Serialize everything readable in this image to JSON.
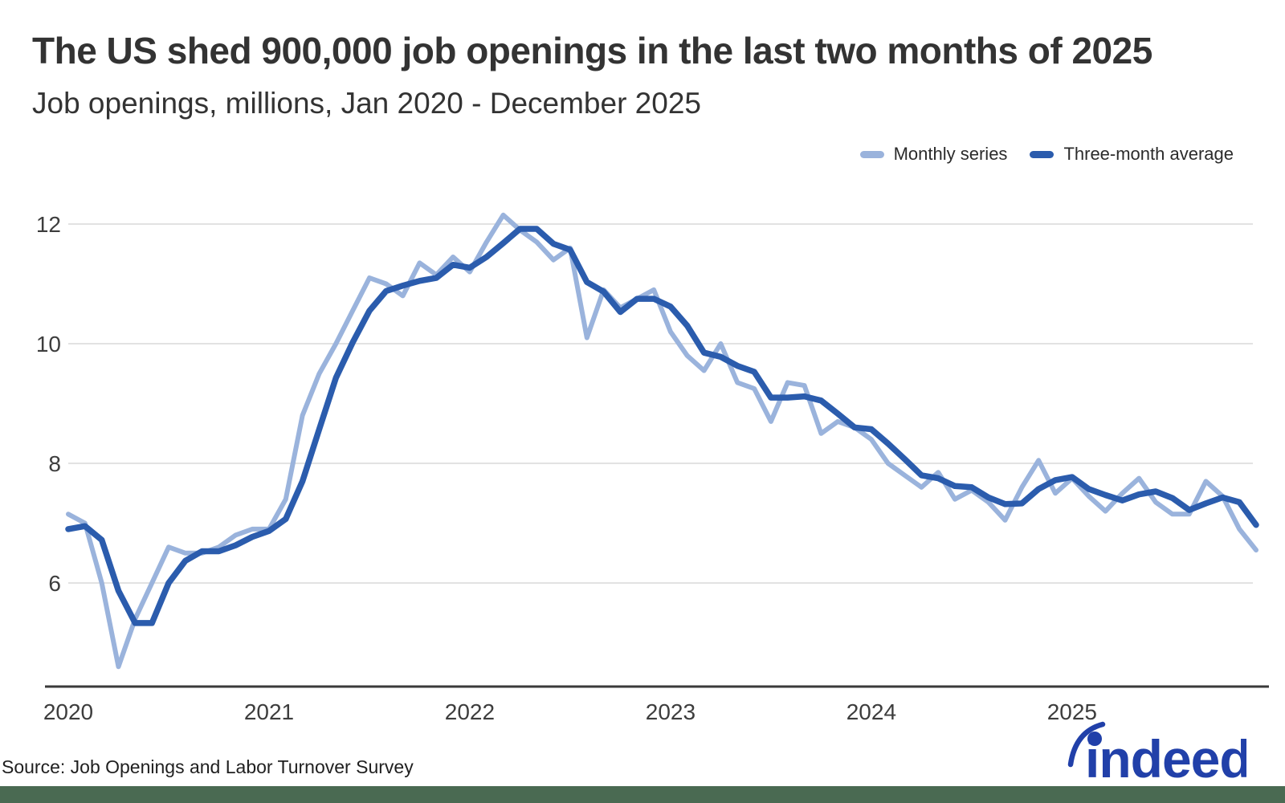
{
  "header": {
    "title": "The US shed 900,000 job openings in the last two months of 2025",
    "subtitle": "Job openings, millions, Jan 2020 - December 2025"
  },
  "chart_data": {
    "type": "line",
    "title": "The US shed 900,000 job openings in the last two months of 2025",
    "subtitle": "Job openings, millions, Jan 2020 - December 2025",
    "x": {
      "tick_labels": [
        "2020",
        "2021",
        "2022",
        "2023",
        "2024",
        "2025"
      ],
      "unit": "month",
      "range_label": "Jan 2020 - December 2025"
    },
    "y": {
      "ticks": [
        6,
        8,
        10,
        12
      ],
      "range": [
        4.25,
        12.7
      ],
      "label": "Job openings, millions"
    },
    "grid": true,
    "legend_position": "top-right",
    "series": [
      {
        "name": "Monthly series",
        "color": "#9ab3dc",
        "values": [
          7.15,
          7.0,
          6.0,
          4.6,
          5.4,
          6.0,
          6.6,
          6.5,
          6.5,
          6.6,
          6.8,
          6.9,
          6.9,
          7.4,
          8.8,
          9.5,
          10.0,
          10.55,
          11.1,
          11.0,
          10.8,
          11.35,
          11.15,
          11.45,
          11.2,
          11.7,
          12.15,
          11.9,
          11.7,
          11.4,
          11.6,
          10.1,
          10.9,
          10.6,
          10.75,
          10.9,
          10.2,
          9.8,
          9.55,
          10.0,
          9.35,
          9.25,
          8.7,
          9.35,
          9.3,
          8.5,
          8.7,
          8.6,
          8.4,
          8.0,
          7.8,
          7.6,
          7.85,
          7.4,
          7.55,
          7.35,
          7.05,
          7.6,
          8.05,
          7.5,
          7.75,
          7.45,
          7.2,
          7.5,
          7.75,
          7.35,
          7.15,
          7.15,
          7.7,
          7.45,
          6.9,
          6.55
        ]
      },
      {
        "name": "Three-month average",
        "color": "#2b5cad",
        "values": [
          6.9,
          6.95,
          6.72,
          5.87,
          5.33,
          5.33,
          6.0,
          6.37,
          6.53,
          6.53,
          6.63,
          6.77,
          6.87,
          7.07,
          7.7,
          8.57,
          9.43,
          10.02,
          10.55,
          10.88,
          10.97,
          11.05,
          11.1,
          11.32,
          11.27,
          11.45,
          11.68,
          11.92,
          11.92,
          11.67,
          11.57,
          11.03,
          10.87,
          10.53,
          10.75,
          10.75,
          10.62,
          10.3,
          9.85,
          9.78,
          9.63,
          9.53,
          9.1,
          9.1,
          9.12,
          9.05,
          8.83,
          8.6,
          8.57,
          8.33,
          8.07,
          7.8,
          7.75,
          7.62,
          7.6,
          7.43,
          7.32,
          7.33,
          7.57,
          7.72,
          7.77,
          7.57,
          7.47,
          7.38,
          7.48,
          7.53,
          7.42,
          7.22,
          7.33,
          7.43,
          7.35,
          6.97
        ]
      }
    ]
  },
  "footer": {
    "source": "Source: Job Openings and Labor Turnover Survey",
    "brand": "indeed",
    "brand_color": "#2140a9",
    "band_color": "#4a6a52"
  },
  "style": {
    "grid_color": "#d9d9d9",
    "axis_color": "#3a3a3a",
    "tick_text_color": "#3d3d3d"
  }
}
